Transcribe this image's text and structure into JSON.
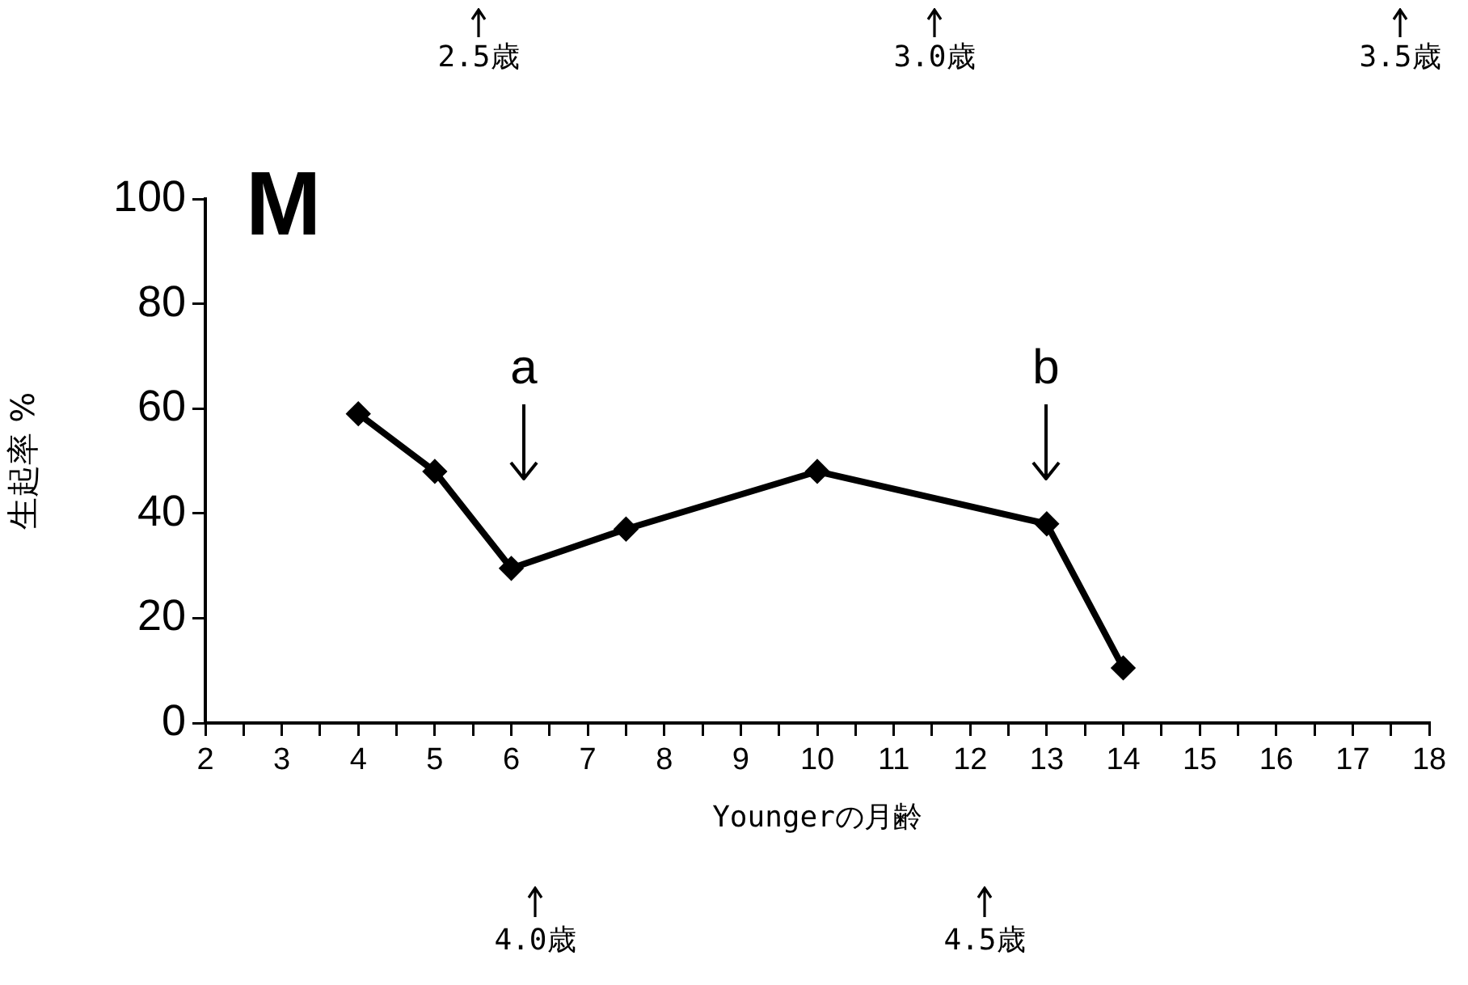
{
  "chart_data": {
    "type": "line",
    "title": "M",
    "xlabel": "Youngerの月齢",
    "ylabel": "生起率 %",
    "x": [
      4,
      5,
      6,
      7.5,
      10,
      13,
      14
    ],
    "series": [
      {
        "color": "#000000",
        "values": [
          59,
          48,
          29.5,
          37,
          48,
          38,
          10.5
        ]
      }
    ],
    "xlim": [
      2,
      18
    ],
    "xticks": [
      2,
      {
        "value": 2.5,
        "label": null
      },
      3,
      {
        "value": 3.5,
        "label": null
      },
      4,
      {
        "value": 4.5,
        "label": null
      },
      5,
      {
        "value": 5.5,
        "label": null
      },
      6,
      {
        "value": 6.5,
        "label": null
      },
      7,
      {
        "value": 7.5,
        "label": null
      },
      8,
      {
        "value": 8.5,
        "label": null
      },
      9,
      {
        "value": 9.5,
        "label": null
      },
      10,
      {
        "value": 10.5,
        "label": null
      },
      11,
      {
        "value": 11.5,
        "label": null
      },
      12,
      {
        "value": 12.5,
        "label": null
      },
      13,
      {
        "value": 13.5,
        "label": null
      },
      14,
      {
        "value": 14.5,
        "label": null
      },
      15,
      {
        "value": 15.5,
        "label": null
      },
      16,
      {
        "value": 16.5,
        "label": null
      },
      17,
      {
        "value": 17.5,
        "label": null
      },
      18
    ],
    "ylim": [
      0,
      100
    ],
    "yticks": [
      0,
      20,
      40,
      60,
      80,
      100
    ],
    "annotations": [
      "2.5歳",
      "3.0歳",
      "3.5歳",
      "a",
      "b",
      "4.0歳",
      "4.5歳"
    ],
    "grid": false,
    "legend": false,
    "marker": "diamond",
    "line_style": "solid"
  }
}
